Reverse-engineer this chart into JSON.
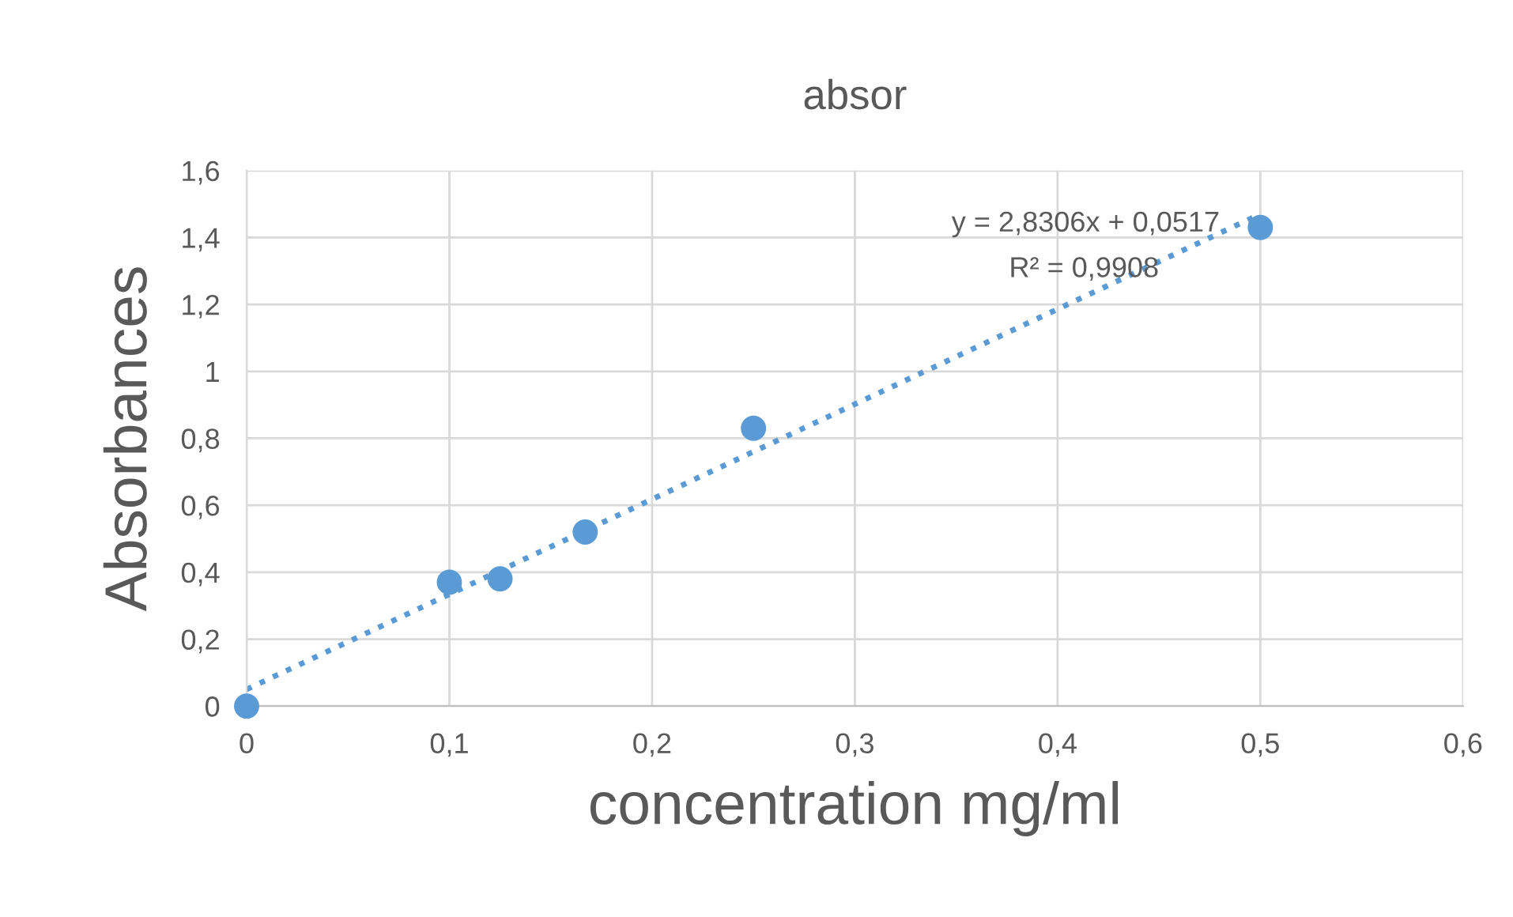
{
  "chart_data": {
    "type": "scatter",
    "title": "absor",
    "xlabel": "concentration mg/ml",
    "ylabel": "Absorbances",
    "x": [
      0,
      0.1,
      0.125,
      0.167,
      0.25,
      0.5
    ],
    "series": [
      {
        "color": "#5b9bd5",
        "values": [
          0,
          0.37,
          0.38,
          0.52,
          0.83,
          1.43
        ],
        "marker": "circle"
      },
      {
        "type": "line",
        "color": "#5b9bd5",
        "x": [
          0,
          0.5
        ],
        "values": [
          0.05,
          1.47
        ],
        "line_style": "dotted",
        "marker": "none"
      }
    ],
    "annotations": [
      "y = 2,8306x + 0,0517",
      "R² = 0,9908"
    ],
    "xlim": [
      0,
      0.6
    ],
    "ylim": [
      0,
      1.6
    ],
    "xticks": [
      0,
      {
        "value": 0.1,
        "label": "0,1"
      },
      {
        "value": 0.2,
        "label": "0,2"
      },
      {
        "value": 0.3,
        "label": "0,3"
      },
      {
        "value": 0.4,
        "label": "0,4"
      },
      {
        "value": 0.5,
        "label": "0,5"
      },
      {
        "value": 0.6,
        "label": "0,6"
      }
    ],
    "yticks": [
      0,
      {
        "value": 0.2,
        "label": "0,2"
      },
      {
        "value": 0.4,
        "label": "0,4"
      },
      {
        "value": 0.6,
        "label": "0,6"
      },
      {
        "value": 0.8,
        "label": "0,8"
      },
      1,
      {
        "value": 1.2,
        "label": "1,2"
      },
      {
        "value": 1.4,
        "label": "1,4"
      },
      {
        "value": 1.6,
        "label": "1,6"
      }
    ],
    "grid": true,
    "legend": false
  }
}
